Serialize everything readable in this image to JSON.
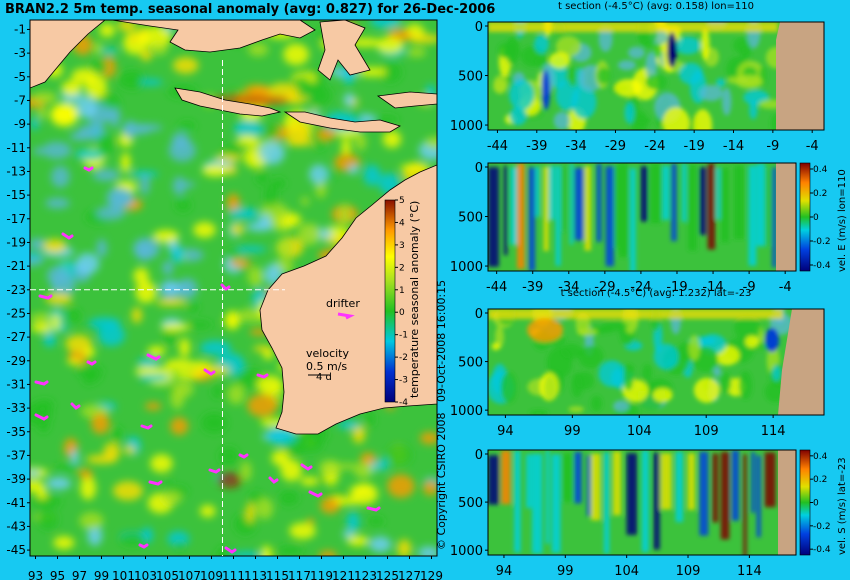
{
  "header": {
    "title": "BRAN2.2 5m temp. seasonal anomaly (avg: 0.827) for 26-Dec-2006"
  },
  "colors": {
    "background": "#17c9f2",
    "land": "#f7c9a4",
    "section_land": "#c8a482",
    "drifter": "#ff33ff",
    "ocean_base": "#3cc23c"
  },
  "map": {
    "lon_ticks": [
      "93",
      "95",
      "97",
      "99",
      "101",
      "103",
      "105",
      "107",
      "109",
      "111",
      "113",
      "115",
      "117",
      "119",
      "121",
      "123",
      "125",
      "127",
      "129"
    ],
    "lat_ticks": [
      "-1",
      "-3",
      "-5",
      "-7",
      "-9",
      "-11",
      "-13",
      "-15",
      "-17",
      "-19",
      "-21",
      "-23",
      "-25",
      "-27",
      "-29",
      "-31",
      "-33",
      "-35",
      "-37",
      "-39",
      "-41",
      "-43",
      "-45"
    ],
    "crosshair_lon": 110,
    "crosshair_lat": -23,
    "drifter_label": "drifter",
    "velocity_label": "velocity",
    "velocity_value": "0.5 m/s",
    "velocity_sub": "4 d",
    "colorbar": {
      "label": "temperature seasonal anomaly (°C)",
      "ticks": [
        "5",
        "4",
        "3",
        "2",
        "1",
        "0",
        "-1",
        "-2",
        "-3",
        "-4"
      ],
      "range": [
        -4,
        5
      ]
    },
    "copyright": "© Copyright CSIRO 2008",
    "timestamp": "09-Oct-2008 16:00:15"
  },
  "panels": [
    {
      "title": "t section (-4.5°C) (avg: 0.158) lon=110",
      "x_ticks": [
        "-44",
        "-39",
        "-34",
        "-29",
        "-24",
        "-19",
        "-14",
        "-9",
        "-4"
      ],
      "y_ticks": [
        "0",
        "500",
        "1000"
      ]
    },
    {
      "title": "",
      "x_ticks": [
        "-44",
        "-39",
        "-34",
        "-29",
        "-24",
        "-19",
        "-14",
        "-9",
        "-4"
      ],
      "y_ticks": [
        "0",
        "500",
        "1000"
      ],
      "colorbar_label": "vel. E (m/s) lon=110",
      "colorbar_ticks": [
        "0.4",
        "0.2",
        "0",
        "-0.2",
        "-0.4"
      ]
    },
    {
      "title": "t section (-4.5°C) (avg: 1.232) lat=-23",
      "x_ticks": [
        "94",
        "99",
        "104",
        "109",
        "114"
      ],
      "y_ticks": [
        "0",
        "500",
        "1000"
      ]
    },
    {
      "title": "",
      "x_ticks": [
        "94",
        "99",
        "104",
        "109",
        "114"
      ],
      "y_ticks": [
        "0",
        "500",
        "1000"
      ],
      "colorbar_label": "vel. S (m/s) lat=-23",
      "colorbar_ticks": [
        "0.4",
        "0.2",
        "0",
        "-0.2",
        "-0.4"
      ]
    }
  ],
  "chart_data": [
    {
      "type": "heatmap",
      "title": "BRAN2.2 5m temp. seasonal anomaly (avg: 0.827) for 26-Dec-2006",
      "x_label": "",
      "y_label": "",
      "xlim": [
        92.5,
        129.5
      ],
      "ylim": [
        -45.5,
        -0.2
      ],
      "variable": "temperature seasonal anomaly (°C)",
      "color_range": [
        -4,
        5
      ],
      "average": 0.827,
      "date": "26-Dec-2006"
    },
    {
      "type": "heatmap",
      "title": "t section (-4.5°C) (avg: 0.158) lon=110",
      "x_ticks": [
        -44,
        -39,
        -34,
        -29,
        -24,
        -19,
        -14,
        -9,
        -4
      ],
      "y_ticks": [
        0,
        500,
        1000
      ],
      "average": 0.158
    },
    {
      "type": "heatmap",
      "variable": "vel. E (m/s) lon=110",
      "x_ticks": [
        -44,
        -39,
        -34,
        -29,
        -24,
        -19,
        -14,
        -9,
        -4
      ],
      "y_ticks": [
        0,
        500,
        1000
      ],
      "color_range": [
        -0.4,
        0.4
      ]
    },
    {
      "type": "heatmap",
      "title": "t section (-4.5°C) (avg: 1.232) lat=-23",
      "x_ticks": [
        94,
        99,
        104,
        109,
        114
      ],
      "y_ticks": [
        0,
        500,
        1000
      ],
      "average": 1.232
    },
    {
      "type": "heatmap",
      "variable": "vel. S (m/s) lat=-23",
      "x_ticks": [
        94,
        99,
        104,
        109,
        114
      ],
      "y_ticks": [
        0,
        500,
        1000
      ],
      "color_range": [
        -0.4,
        0.4
      ]
    }
  ]
}
